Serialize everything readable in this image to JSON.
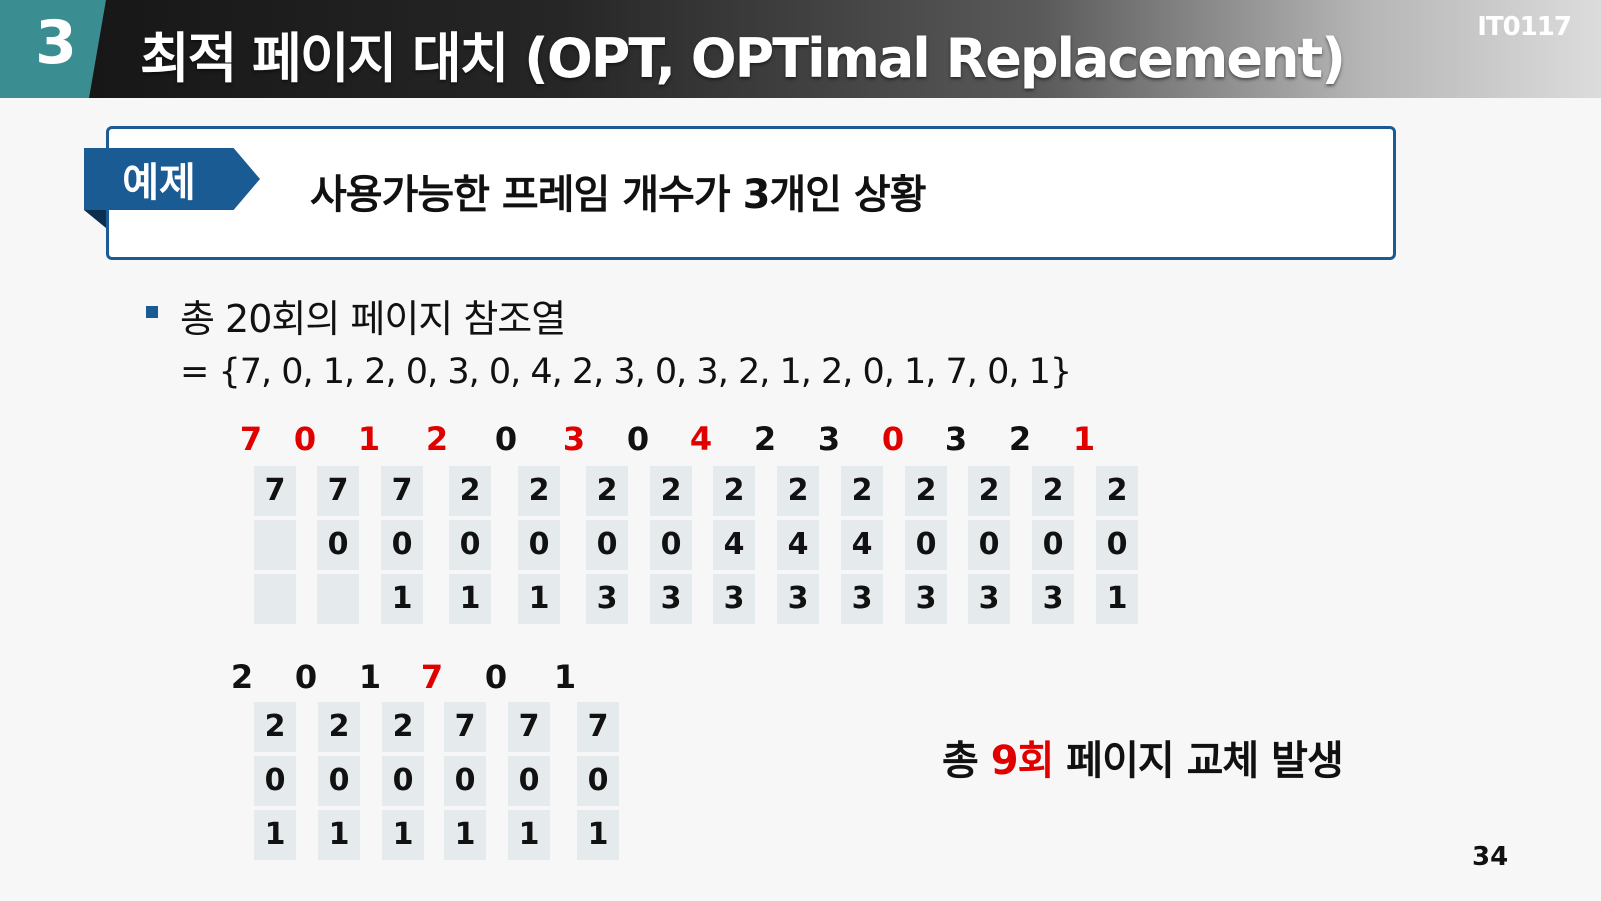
{
  "header": {
    "section_number": "3",
    "title": "최적 페이지 대치 (OPT, OPTimal Replacement)",
    "course_code": "IT0117"
  },
  "example": {
    "tag": "예제",
    "text": "사용가능한 프레임 개수가 3개인 상황"
  },
  "bullet": {
    "text": "총 20회의 페이지 참조열",
    "sequence": "= {7, 0, 1, 2, 0, 3, 0, 4, 2, 3, 0, 3, 2, 1, 2, 0, 1, 7, 0, 1}"
  },
  "row1": {
    "refs": [
      {
        "v": "7",
        "fault": true
      },
      {
        "v": "0",
        "fault": true
      },
      {
        "v": "1",
        "fault": true
      },
      {
        "v": "2",
        "fault": true
      },
      {
        "v": "0",
        "fault": false
      },
      {
        "v": "3",
        "fault": true
      },
      {
        "v": "0",
        "fault": false
      },
      {
        "v": "4",
        "fault": true
      },
      {
        "v": "2",
        "fault": false
      },
      {
        "v": "3",
        "fault": false
      },
      {
        "v": "0",
        "fault": true
      },
      {
        "v": "3",
        "fault": false
      },
      {
        "v": "2",
        "fault": false
      },
      {
        "v": "1",
        "fault": true
      }
    ],
    "frames": [
      [
        "7",
        "",
        ""
      ],
      [
        "7",
        "0",
        ""
      ],
      [
        "7",
        "0",
        "1"
      ],
      [
        "2",
        "0",
        "1"
      ],
      [
        "2",
        "0",
        "1"
      ],
      [
        "2",
        "0",
        "3"
      ],
      [
        "2",
        "0",
        "3"
      ],
      [
        "2",
        "4",
        "3"
      ],
      [
        "2",
        "4",
        "3"
      ],
      [
        "2",
        "4",
        "3"
      ],
      [
        "2",
        "0",
        "3"
      ],
      [
        "2",
        "0",
        "3"
      ],
      [
        "2",
        "0",
        "3"
      ],
      [
        "2",
        "0",
        "1"
      ]
    ]
  },
  "row2": {
    "refs": [
      {
        "v": "2",
        "fault": false
      },
      {
        "v": "0",
        "fault": false
      },
      {
        "v": "1",
        "fault": false
      },
      {
        "v": "7",
        "fault": true
      },
      {
        "v": "0",
        "fault": false
      },
      {
        "v": "1",
        "fault": false
      }
    ],
    "frames": [
      [
        "2",
        "0",
        "1"
      ],
      [
        "2",
        "0",
        "1"
      ],
      [
        "2",
        "0",
        "1"
      ],
      [
        "7",
        "0",
        "1"
      ],
      [
        "7",
        "0",
        "1"
      ],
      [
        "7",
        "0",
        "1"
      ]
    ]
  },
  "summary": {
    "prefix": "총 ",
    "highlight": "9회",
    "suffix": " 페이지 교체 발생"
  },
  "page_number": "34"
}
